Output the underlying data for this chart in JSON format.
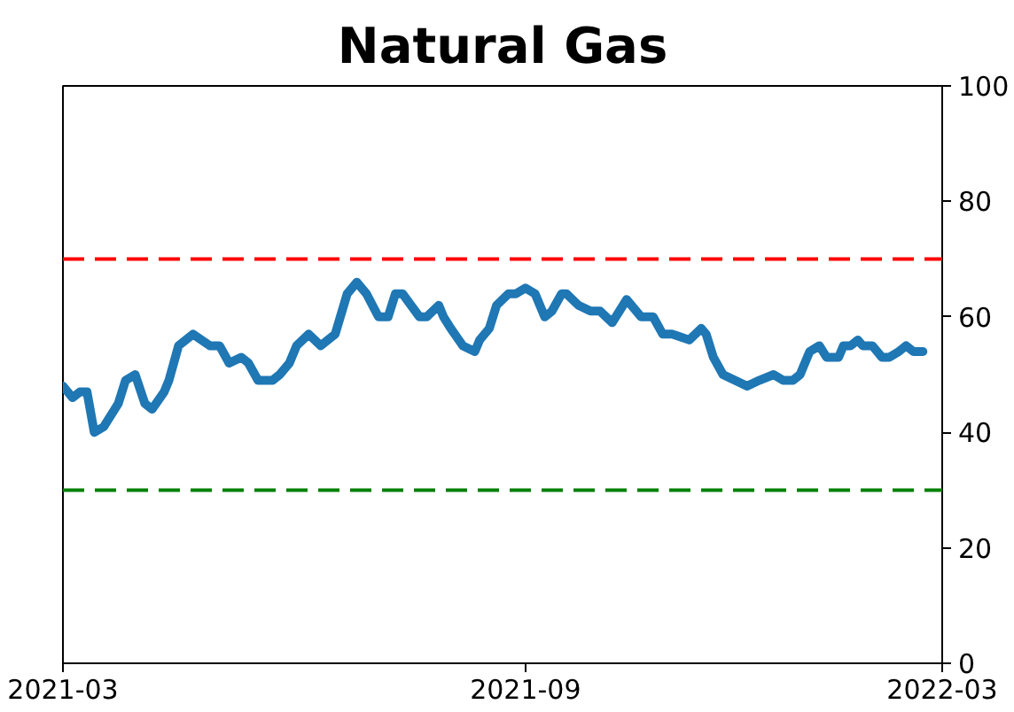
{
  "chart_data": {
    "type": "line",
    "title": "Natural Gas",
    "x": [
      "2021-03-01",
      "2021-03-05",
      "2021-03-08",
      "2021-03-11",
      "2021-03-14",
      "2021-03-18",
      "2021-03-21",
      "2021-03-24",
      "2021-03-27",
      "2021-03-31",
      "2021-04-04",
      "2021-04-07",
      "2021-04-12",
      "2021-04-14",
      "2021-04-18",
      "2021-04-24",
      "2021-05-01",
      "2021-05-05",
      "2021-05-09",
      "2021-05-14",
      "2021-05-17",
      "2021-05-21",
      "2021-05-27",
      "2021-05-30",
      "2021-06-03",
      "2021-06-06",
      "2021-06-11",
      "2021-06-16",
      "2021-06-22",
      "2021-06-27",
      "2021-07-01",
      "2021-07-05",
      "2021-07-10",
      "2021-07-14",
      "2021-07-17",
      "2021-07-20",
      "2021-07-27",
      "2021-07-30",
      "2021-08-04",
      "2021-08-06",
      "2021-08-09",
      "2021-08-14",
      "2021-08-19",
      "2021-08-21",
      "2021-08-25",
      "2021-08-28",
      "2021-09-02",
      "2021-09-05",
      "2021-09-09",
      "2021-09-13",
      "2021-09-17",
      "2021-09-20",
      "2021-09-24",
      "2021-09-26",
      "2021-10-01",
      "2021-10-06",
      "2021-10-10",
      "2021-10-15",
      "2021-10-21",
      "2021-10-27",
      "2021-11-01",
      "2021-11-05",
      "2021-11-09",
      "2021-11-16",
      "2021-11-21",
      "2021-11-23",
      "2021-11-26",
      "2021-11-30",
      "2021-12-05",
      "2021-12-10",
      "2021-12-15",
      "2021-12-21",
      "2021-12-25",
      "2021-12-29",
      "2022-01-01",
      "2022-01-05",
      "2022-01-09",
      "2022-01-12",
      "2022-01-17",
      "2022-01-19",
      "2022-01-22",
      "2022-01-25",
      "2022-01-27",
      "2022-01-31",
      "2022-02-04",
      "2022-02-07",
      "2022-02-11",
      "2022-02-14",
      "2022-02-17",
      "2022-02-21"
    ],
    "values": [
      48,
      46,
      47,
      47,
      40,
      41,
      43,
      45,
      49,
      50,
      45,
      44,
      47,
      49,
      55,
      57,
      55,
      55,
      52,
      53,
      52,
      49,
      49,
      50,
      52,
      55,
      57,
      55,
      57,
      64,
      66,
      64,
      60,
      60,
      64,
      64,
      60,
      60,
      62,
      60,
      58,
      55,
      54,
      56,
      58,
      62,
      64,
      64,
      65,
      64,
      60,
      61,
      64,
      64,
      62,
      61,
      61,
      59,
      63,
      60,
      60,
      57,
      57,
      56,
      58,
      57,
      53,
      50,
      49,
      48,
      49,
      50,
      49,
      49,
      50,
      54,
      55,
      53,
      53,
      55,
      55,
      56,
      55,
      55,
      53,
      53,
      54,
      55,
      54,
      54
    ],
    "color": "#1f77b4",
    "xlim": [
      "2021-03-01",
      "2022-03-01"
    ],
    "xticks": [
      {
        "value": "2021-03-01",
        "label": "2021-03"
      },
      {
        "value": "2021-09-09",
        "label": "2021-09"
      },
      {
        "value": "2022-03-01",
        "label": "2022-03"
      }
    ],
    "ylim": [
      0,
      100
    ],
    "yticks": [
      0,
      20,
      40,
      60,
      80,
      100
    ],
    "ref_lines": [
      {
        "axis": "y",
        "value": 70,
        "color": "#ff0000",
        "line_style": "dashed"
      },
      {
        "axis": "y",
        "value": 30,
        "color": "#008000",
        "line_style": "dashed"
      }
    ]
  }
}
